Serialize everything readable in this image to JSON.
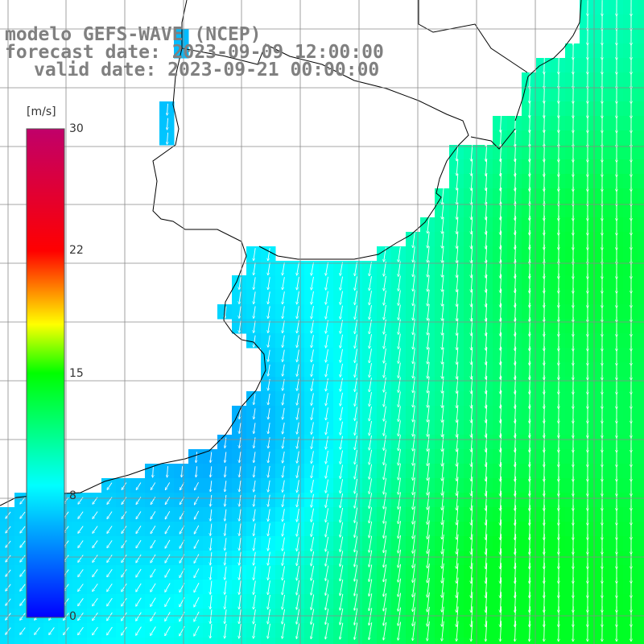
{
  "title": {
    "model": "modelo GEFS-WAVE (NCEP)",
    "forecast": "forecast date: 2023-09-09 12:00:00",
    "valid": "valid date: 2023-09-21 00:00:00"
  },
  "colorbar": {
    "units": "[m/s]",
    "ticks": [
      "30",
      "22",
      "15",
      "8",
      "0"
    ],
    "range": [
      0,
      30
    ],
    "colors": [
      "#0000ff",
      "#00ffff",
      "#00ff00",
      "#ffff00",
      "#ff0000",
      "#c0006a"
    ]
  },
  "map": {
    "variable": "wind speed and direction",
    "land_color": "#ffffff",
    "grid_color": "#9a9a9a",
    "coast_color": "#000000"
  }
}
